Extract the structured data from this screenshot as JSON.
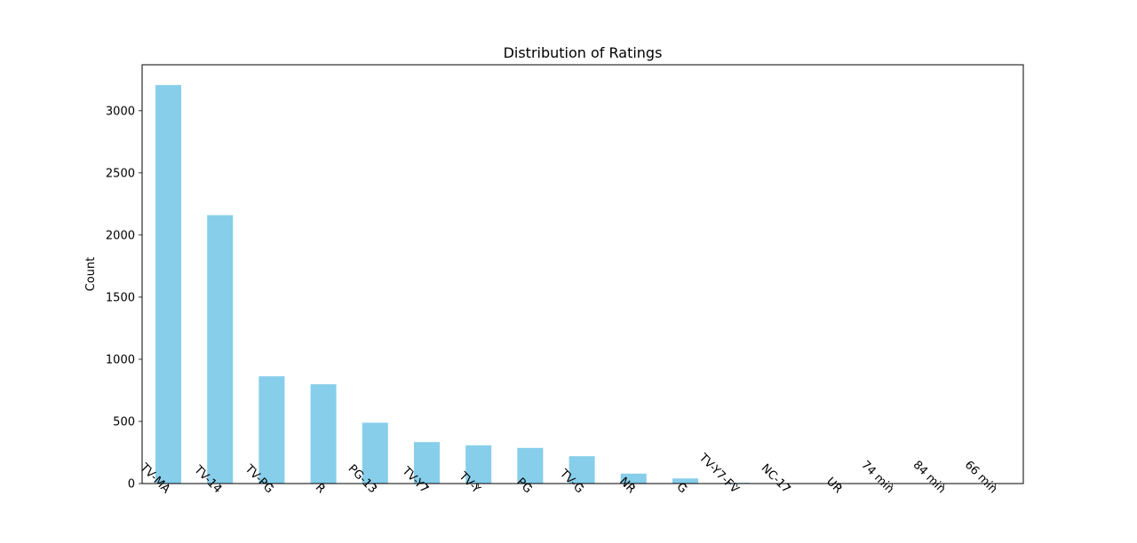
{
  "chart_data": {
    "type": "bar",
    "title": "Distribution of Ratings",
    "xlabel": "",
    "ylabel": "Count",
    "categories": [
      "TV-MA",
      "TV-14",
      "TV-PG",
      "R",
      "PG-13",
      "TV-Y7",
      "TV-Y",
      "PG",
      "TV-G",
      "NR",
      "G",
      "TV-Y7-FV",
      "NC-17",
      "UR",
      "74 min",
      "84 min",
      "66 min"
    ],
    "values": [
      3207,
      2160,
      863,
      799,
      490,
      334,
      307,
      287,
      220,
      80,
      41,
      6,
      3,
      3,
      1,
      1,
      1
    ],
    "ylim": [
      0,
      3370
    ],
    "yticks": [
      0,
      500,
      1000,
      1500,
      2000,
      2500,
      3000
    ],
    "bar_color": "#87ceeb",
    "grid": false,
    "legend": "none"
  }
}
